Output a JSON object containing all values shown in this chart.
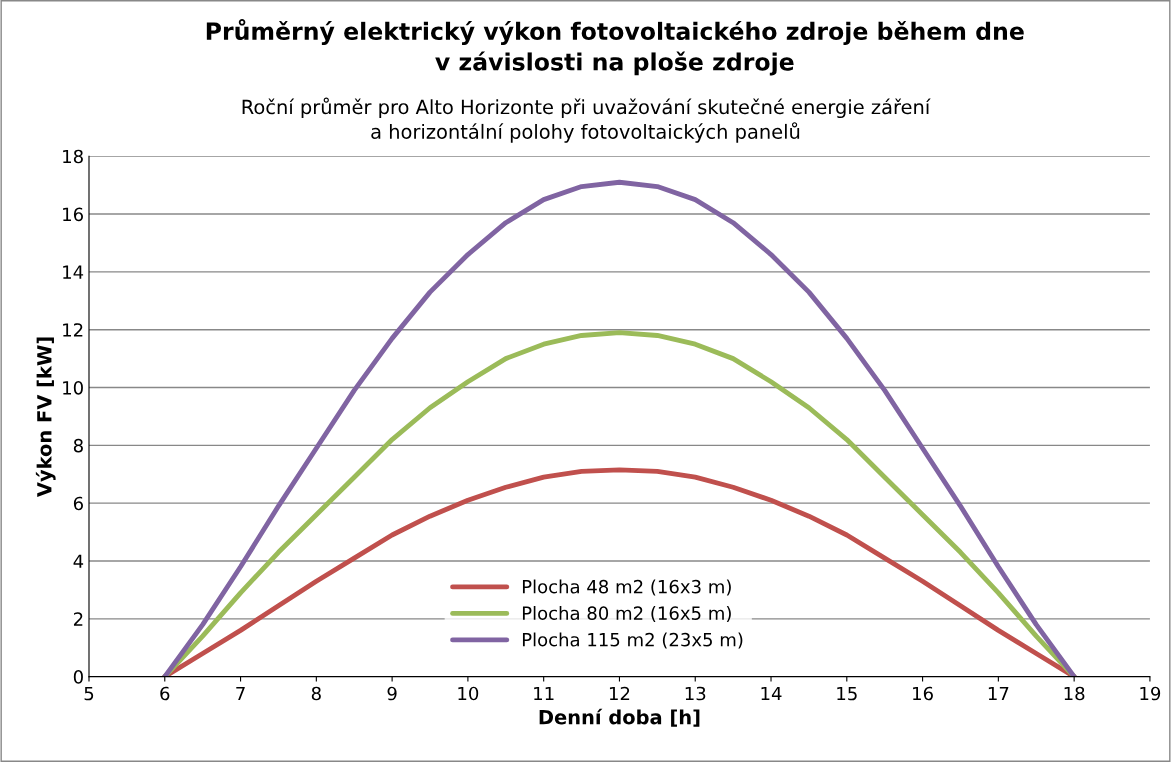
{
  "chart_data": {
    "type": "line",
    "title": "Průměrný elektrický výkon fotovoltaického zdroje během dne\nv závislosti na ploše zdroje",
    "subtitle": "Roční průměr pro Alto Horizonte při uvažování skutečné energie záření\na horizontální polohy fotovoltaických panelů",
    "xlabel": "Denní doba [h]",
    "ylabel": "Výkon FV [kW]",
    "x": [
      6,
      6.5,
      7,
      7.5,
      8,
      8.5,
      9,
      9.5,
      10,
      10.5,
      11,
      11.5,
      12,
      12.5,
      13,
      13.5,
      14,
      14.5,
      15,
      15.5,
      16,
      16.5,
      17,
      17.5,
      18
    ],
    "series": [
      {
        "name": "Plocha 48 m2 (16x3 m)",
        "color": "#c0504d",
        "values": [
          0,
          0.8,
          1.6,
          2.45,
          3.3,
          4.1,
          4.9,
          5.55,
          6.1,
          6.55,
          6.9,
          7.1,
          7.15,
          7.1,
          6.9,
          6.55,
          6.1,
          5.55,
          4.9,
          4.1,
          3.3,
          2.45,
          1.6,
          0.8,
          0
        ]
      },
      {
        "name": "Plocha 80 m2 (16x5 m)",
        "color": "#9bbb59",
        "values": [
          0,
          1.4,
          2.9,
          4.3,
          5.6,
          6.9,
          8.2,
          9.3,
          10.2,
          11.0,
          11.5,
          11.8,
          11.9,
          11.8,
          11.5,
          11.0,
          10.2,
          9.3,
          8.2,
          6.9,
          5.6,
          4.3,
          2.9,
          1.4,
          0
        ]
      },
      {
        "name": "Plocha 115 m2 (23x5 m)",
        "color": "#8064a2",
        "values": [
          0,
          1.8,
          3.8,
          5.9,
          7.9,
          9.9,
          11.7,
          13.3,
          14.6,
          15.7,
          16.5,
          16.95,
          17.1,
          16.95,
          16.5,
          15.7,
          14.6,
          13.3,
          11.7,
          9.9,
          7.9,
          5.9,
          3.8,
          1.8,
          0
        ]
      }
    ],
    "xlim": [
      5,
      19
    ],
    "xticks": [
      5,
      6,
      7,
      8,
      9,
      10,
      11,
      12,
      13,
      14,
      15,
      16,
      17,
      18,
      19
    ],
    "ylim": [
      0,
      18
    ],
    "yticks": [
      0,
      2,
      4,
      6,
      8,
      10,
      12,
      14,
      16,
      18
    ],
    "grid": "y",
    "legend": "bottom",
    "marker": "none",
    "line_style": "solid"
  }
}
